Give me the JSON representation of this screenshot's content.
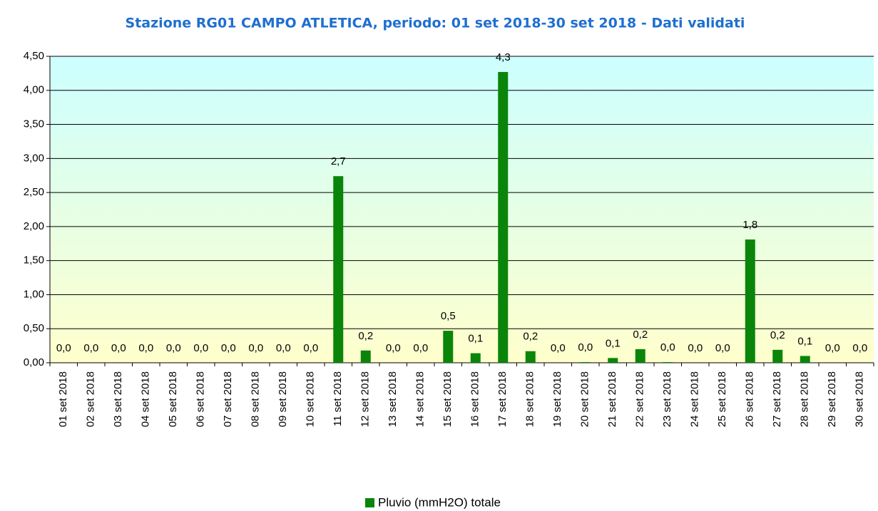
{
  "chart_data": {
    "type": "bar",
    "title": "Stazione RG01 CAMPO ATLETICA, periodo: 01 set 2018-30 set 2018 - Dati validati",
    "categories": [
      "01 set 2018",
      "02 set 2018",
      "03 set 2018",
      "04 set 2018",
      "05 set 2018",
      "06 set 2018",
      "07 set 2018",
      "08 set 2018",
      "09 set 2018",
      "10 set 2018",
      "11 set 2018",
      "12 set 2018",
      "13 set 2018",
      "14 set 2018",
      "15 set 2018",
      "16 set 2018",
      "17 set 2018",
      "18 set 2018",
      "19 set 2018",
      "20 set 2018",
      "21 set 2018",
      "22 set 2018",
      "23 set 2018",
      "24 set 2018",
      "25 set 2018",
      "26 set 2018",
      "27 set 2018",
      "28 set 2018",
      "29 set 2018",
      "30 set 2018"
    ],
    "series": [
      {
        "name": "Pluvio (mmH2O) totale",
        "color": "#0a850a",
        "values": [
          0,
          0,
          0,
          0,
          0,
          0,
          0,
          0,
          0,
          0,
          2.74,
          0.18,
          0,
          0,
          0.47,
          0.14,
          4.27,
          0.17,
          0,
          0.01,
          0.07,
          0.2,
          0.01,
          0,
          0,
          1.81,
          0.19,
          0.1,
          0,
          0
        ],
        "value_labels": [
          "0,0",
          "0,0",
          "0,0",
          "0,0",
          "0,0",
          "0,0",
          "0,0",
          "0,0",
          "0,0",
          "0,0",
          "2,7",
          "0,2",
          "0,0",
          "0,0",
          "0,5",
          "0,1",
          "4,3",
          "0,2",
          "0,0",
          "0,0",
          "0,1",
          "0,2",
          "0,0",
          "0,0",
          "0,0",
          "1,8",
          "0,2",
          "0,1",
          "0,0",
          "0,0"
        ]
      }
    ],
    "ylim": [
      0,
      4.5
    ],
    "yticks": [
      {
        "value": 0,
        "label": "0,00"
      },
      {
        "value": 0.5,
        "label": "0,50"
      },
      {
        "value": 1,
        "label": "1,00"
      },
      {
        "value": 1.5,
        "label": "1,50"
      },
      {
        "value": 2,
        "label": "2,00"
      },
      {
        "value": 2.5,
        "label": "2,50"
      },
      {
        "value": 3,
        "label": "3,00"
      },
      {
        "value": 3.5,
        "label": "3,50"
      },
      {
        "value": 4,
        "label": "4,00"
      },
      {
        "value": 4.5,
        "label": "4,50"
      }
    ],
    "grid": true,
    "legend": "bottom"
  }
}
